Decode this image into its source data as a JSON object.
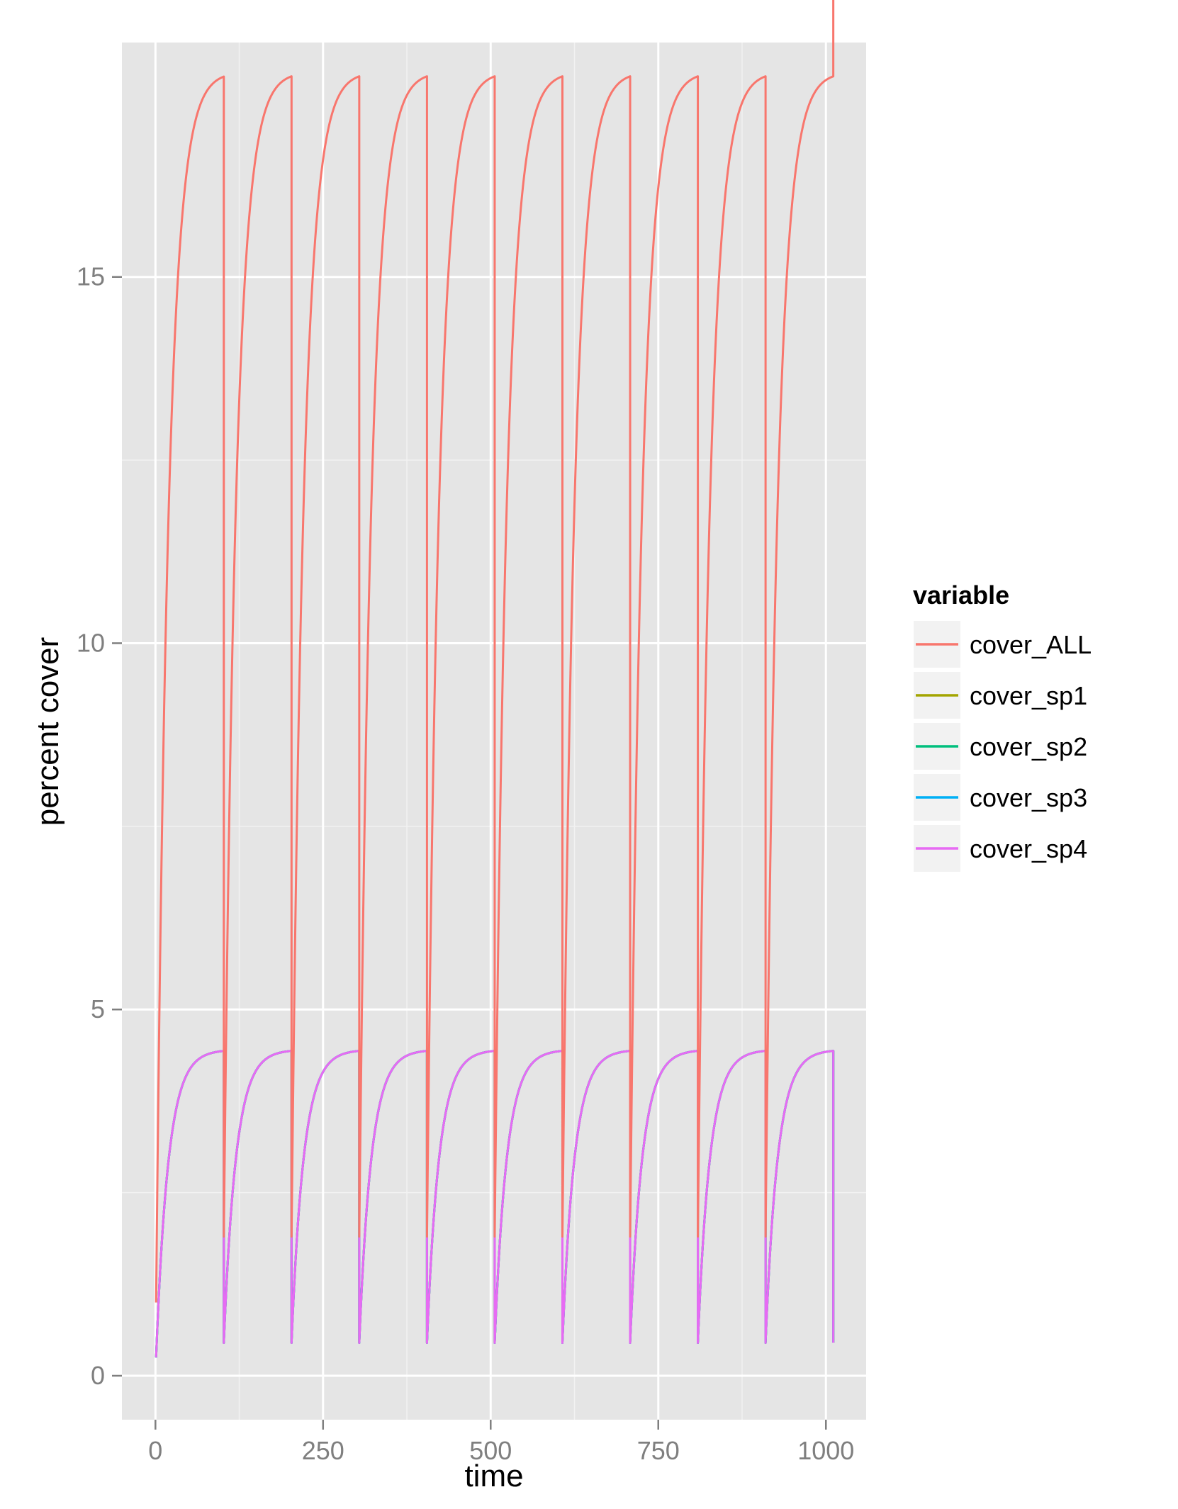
{
  "chart_data": {
    "type": "line",
    "title": "",
    "xlabel": "time",
    "ylabel": "percent cover",
    "xlim": [
      -50,
      1060
    ],
    "ylim": [
      -0.6,
      18.2
    ],
    "xticks": [
      0,
      250,
      500,
      750,
      1000
    ],
    "yticks": [
      0,
      5,
      10,
      15
    ],
    "grid": true,
    "legend": {
      "title": "variable",
      "position": "right",
      "entries": [
        "cover_ALL",
        "cover_sp1",
        "cover_sp2",
        "cover_sp3",
        "cover_sp4"
      ]
    },
    "colors": {
      "cover_ALL": "#F8766D",
      "cover_sp1": "#A3A500",
      "cover_sp2": "#00BF7D",
      "cover_sp3": "#00B0F6",
      "cover_sp4": "#E76BF3"
    },
    "cycle_period": 101,
    "cycles": 10,
    "series": [
      {
        "name": "cover_ALL",
        "start": 1.0,
        "reset": 1.9,
        "peak": 17.8,
        "rate": 0.055
      },
      {
        "name": "cover_sp1",
        "start": 0.25,
        "reset": 0.45,
        "peak": 4.45,
        "rate": 0.055
      },
      {
        "name": "cover_sp2",
        "start": 0.25,
        "reset": 0.45,
        "peak": 4.45,
        "rate": 0.055
      },
      {
        "name": "cover_sp3",
        "start": 0.25,
        "reset": 0.45,
        "peak": 4.45,
        "rate": 0.055
      },
      {
        "name": "cover_sp4",
        "start": 0.25,
        "reset": 0.45,
        "peak": 4.45,
        "rate": 0.055
      }
    ]
  }
}
